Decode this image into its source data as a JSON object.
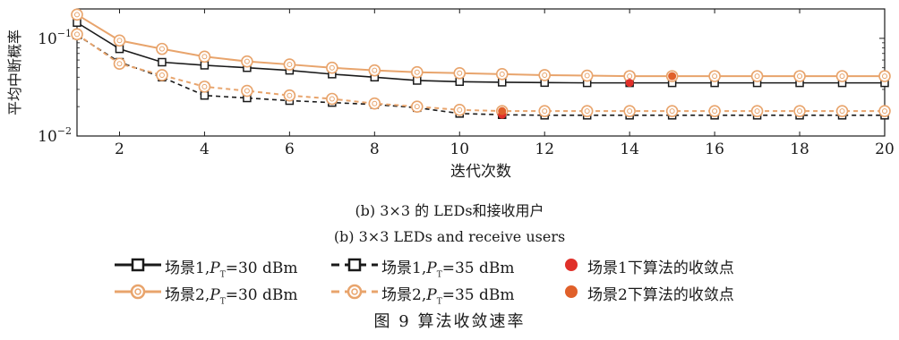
{
  "chart_data": {
    "type": "line",
    "xlabel": "迭代次数",
    "ylabel": "平均中断概率",
    "x": [
      1,
      2,
      3,
      4,
      5,
      6,
      7,
      8,
      9,
      10,
      11,
      12,
      13,
      14,
      15,
      16,
      17,
      18,
      19,
      20
    ],
    "xlim": [
      1,
      20
    ],
    "xticks": [
      2,
      4,
      6,
      8,
      10,
      12,
      14,
      16,
      18,
      20
    ],
    "ylim": [
      0.01,
      0.2
    ],
    "yscale": "log",
    "yticks": [
      {
        "value": 0.1,
        "base": "10",
        "exp": "−1"
      },
      {
        "value": 0.01,
        "base": "10",
        "exp": "−2"
      }
    ],
    "grid": false,
    "series": [
      {
        "name": "场景1,P_T=30 dBm",
        "label_prefix": "场景1,",
        "label_sym": "P",
        "label_sub": "T",
        "label_suffix": "=30 dBm",
        "color": "#1a1a1a",
        "dash": "solid",
        "marker": "square",
        "values": [
          0.145,
          0.078,
          0.057,
          0.053,
          0.05,
          0.047,
          0.043,
          0.04,
          0.037,
          0.036,
          0.0355,
          0.0352,
          0.035,
          0.035,
          0.035,
          0.035,
          0.035,
          0.035,
          0.035,
          0.035
        ]
      },
      {
        "name": "场景1,P_T=35 dBm",
        "label_prefix": "场景1,",
        "label_sym": "P",
        "label_sub": "T",
        "label_suffix": "=35 dBm",
        "color": "#1a1a1a",
        "dash": "dashed",
        "marker": "square",
        "values": [
          0.108,
          0.057,
          0.04,
          0.026,
          0.0245,
          0.023,
          0.022,
          0.021,
          0.0195,
          0.017,
          0.0165,
          0.0163,
          0.0163,
          0.0163,
          0.0163,
          0.0163,
          0.0163,
          0.0163,
          0.0163,
          0.0163
        ]
      },
      {
        "name": "场景2,P_T=30 dBm",
        "label_prefix": "场景2,",
        "label_sym": "P",
        "label_sub": "T",
        "label_suffix": "=30 dBm",
        "color": "#e8a46c",
        "dash": "solid",
        "marker": "circle",
        "values": [
          0.175,
          0.095,
          0.078,
          0.065,
          0.058,
          0.054,
          0.05,
          0.047,
          0.045,
          0.044,
          0.043,
          0.042,
          0.0415,
          0.041,
          0.041,
          0.041,
          0.041,
          0.041,
          0.041,
          0.041
        ]
      },
      {
        "name": "场景2,P_T=35 dBm",
        "label_prefix": "场景2,",
        "label_sym": "P",
        "label_sub": "T",
        "label_suffix": "=35 dBm",
        "color": "#e8a46c",
        "dash": "dashed",
        "marker": "circle",
        "values": [
          0.11,
          0.055,
          0.042,
          0.032,
          0.029,
          0.026,
          0.024,
          0.0215,
          0.02,
          0.0185,
          0.018,
          0.018,
          0.018,
          0.018,
          0.018,
          0.018,
          0.018,
          0.018,
          0.018,
          0.018
        ]
      }
    ],
    "convergence_points": [
      {
        "name": "场景1下算法的收敛点",
        "color": "#e0302a",
        "points": [
          [
            11,
            0.0165
          ],
          [
            14,
            0.035
          ]
        ]
      },
      {
        "name": "场景2下算法的收敛点",
        "color": "#e0602a",
        "points": [
          [
            11,
            0.018
          ],
          [
            15,
            0.041
          ]
        ]
      }
    ]
  },
  "caption_cn": "(b) 3×3 的 LEDs和接收用户",
  "caption_en": "(b) 3×3 LEDs and receive users",
  "figure_title": "图 9  算法收敛速率",
  "legend": {
    "conv1": "场景1下算法的收敛点",
    "conv2": "场景2下算法的收敛点"
  }
}
